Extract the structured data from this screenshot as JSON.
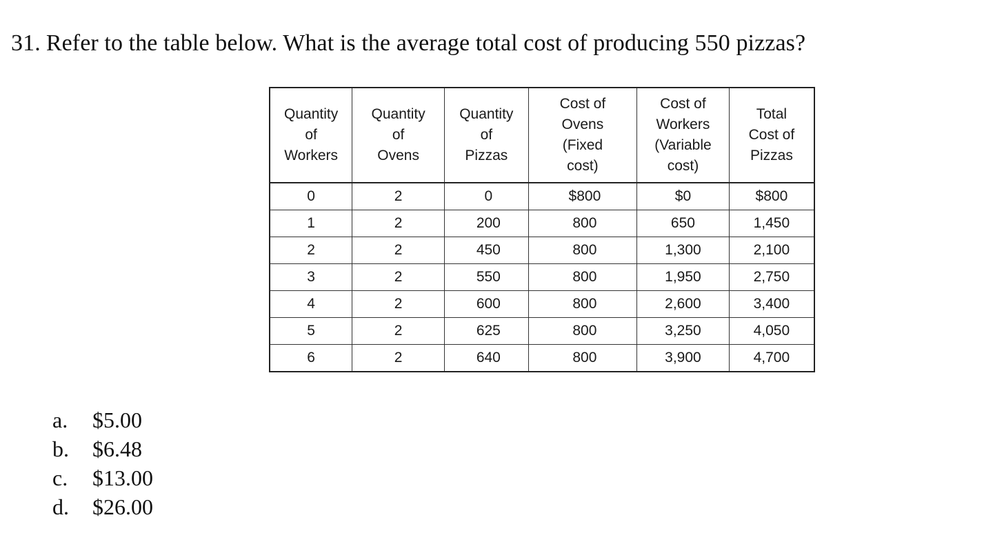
{
  "question": {
    "number": "31.",
    "text": "Refer to the table below. What is the average total cost of producing 550 pizzas?"
  },
  "table": {
    "headers": [
      "Quantity\nof\nWorkers",
      "Quantity\nof\nOvens",
      "Quantity\nof\nPizzas",
      "Cost of\nOvens\n(Fixed\ncost)",
      "Cost of\nWorkers\n(Variable\ncost)",
      "Total\nCost of\nPizzas"
    ],
    "rows": [
      [
        "0",
        "2",
        "0",
        "$800",
        "$0",
        "$800"
      ],
      [
        "1",
        "2",
        "200",
        "800",
        "650",
        "1,450"
      ],
      [
        "2",
        "2",
        "450",
        "800",
        "1,300",
        "2,100"
      ],
      [
        "3",
        "2",
        "550",
        "800",
        "1,950",
        "2,750"
      ],
      [
        "4",
        "2",
        "600",
        "800",
        "2,600",
        "3,400"
      ],
      [
        "5",
        "2",
        "625",
        "800",
        "3,250",
        "4,050"
      ],
      [
        "6",
        "2",
        "640",
        "800",
        "3,900",
        "4,700"
      ]
    ]
  },
  "answers": [
    {
      "letter": "a.",
      "text": "$5.00"
    },
    {
      "letter": "b.",
      "text": "$6.48"
    },
    {
      "letter": "c.",
      "text": "$13.00"
    },
    {
      "letter": "d.",
      "text": "$26.00"
    }
  ]
}
